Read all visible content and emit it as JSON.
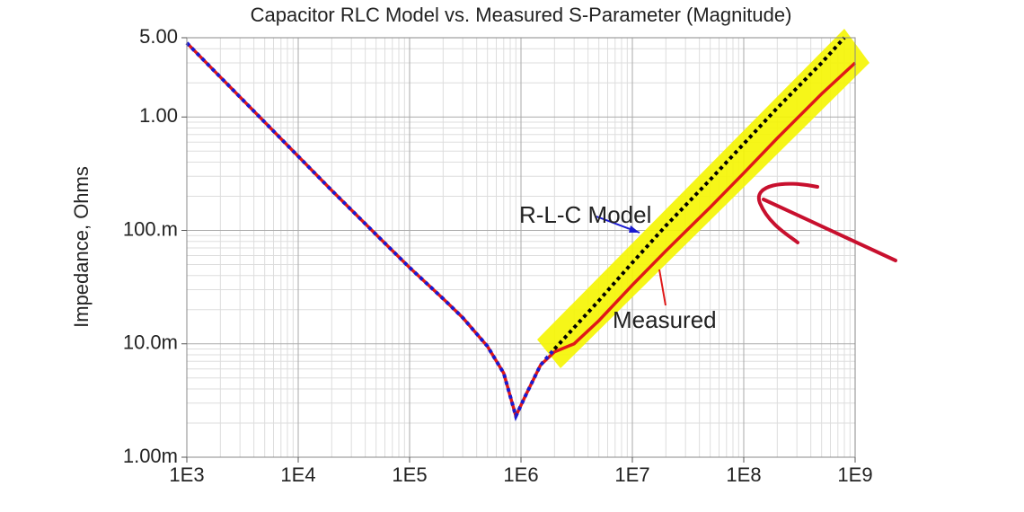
{
  "chart_data": {
    "type": "line",
    "title": "Capacitor RLC Model vs. Measured S-Parameter (Magnitude)",
    "y_label": "Impedance, Ohms",
    "log_x": true,
    "log_y": true,
    "grid": true,
    "minor_grid": true,
    "xlim": [
      1000,
      1000000000
    ],
    "ylim": [
      0.001,
      5
    ],
    "xticks": [
      {
        "value": 1000,
        "label": "1E3"
      },
      {
        "value": 10000,
        "label": "1E4"
      },
      {
        "value": 100000,
        "label": "1E5"
      },
      {
        "value": 1000000,
        "label": "1E6"
      },
      {
        "value": 10000000,
        "label": "1E7"
      },
      {
        "value": 100000000,
        "label": "1E8"
      },
      {
        "value": 1000000000,
        "label": "1E9"
      }
    ],
    "yticks": [
      {
        "value": 0.001,
        "label": "1.00m"
      },
      {
        "value": 0.01,
        "label": "10.0m"
      },
      {
        "value": 0.1,
        "label": "100.m"
      },
      {
        "value": 1,
        "label": "1.00"
      },
      {
        "value": 5,
        "label": "5.00"
      }
    ],
    "series": [
      {
        "name": "Measured",
        "color": "#e01818",
        "dash": false,
        "x": [
          1000,
          2000,
          5000,
          10000,
          20000,
          50000,
          100000,
          200000,
          300000,
          500000,
          700000,
          900000,
          1100000,
          1500000,
          2000000,
          3000000,
          5000000,
          10000000,
          20000000,
          50000000,
          100000000,
          200000000,
          500000000,
          1000000000
        ],
        "values": [
          4.5,
          2.25,
          0.9,
          0.45,
          0.225,
          0.092,
          0.047,
          0.025,
          0.017,
          0.0095,
          0.0055,
          0.0023,
          0.0035,
          0.0065,
          0.0085,
          0.01,
          0.016,
          0.033,
          0.066,
          0.16,
          0.32,
          0.65,
          1.6,
          3.0
        ]
      },
      {
        "color": "#1a1ad0",
        "dash": true,
        "x": [
          1000,
          2000,
          5000,
          10000,
          20000,
          50000,
          100000,
          200000,
          300000,
          500000,
          700000,
          900000,
          1100000,
          1500000,
          2000000
        ],
        "values": [
          4.5,
          2.25,
          0.9,
          0.45,
          0.225,
          0.092,
          0.047,
          0.025,
          0.017,
          0.0095,
          0.0055,
          0.0023,
          0.0035,
          0.0065,
          0.009
        ]
      },
      {
        "name": "R-L-C Model",
        "color": "#000000",
        "dash": true,
        "x": [
          2000000,
          5000000,
          10000000,
          20000000,
          50000000,
          100000000,
          200000000,
          500000000,
          800000000
        ],
        "values": [
          0.009,
          0.024,
          0.052,
          0.11,
          0.28,
          0.58,
          1.2,
          3.0,
          5.0
        ]
      }
    ]
  }
}
